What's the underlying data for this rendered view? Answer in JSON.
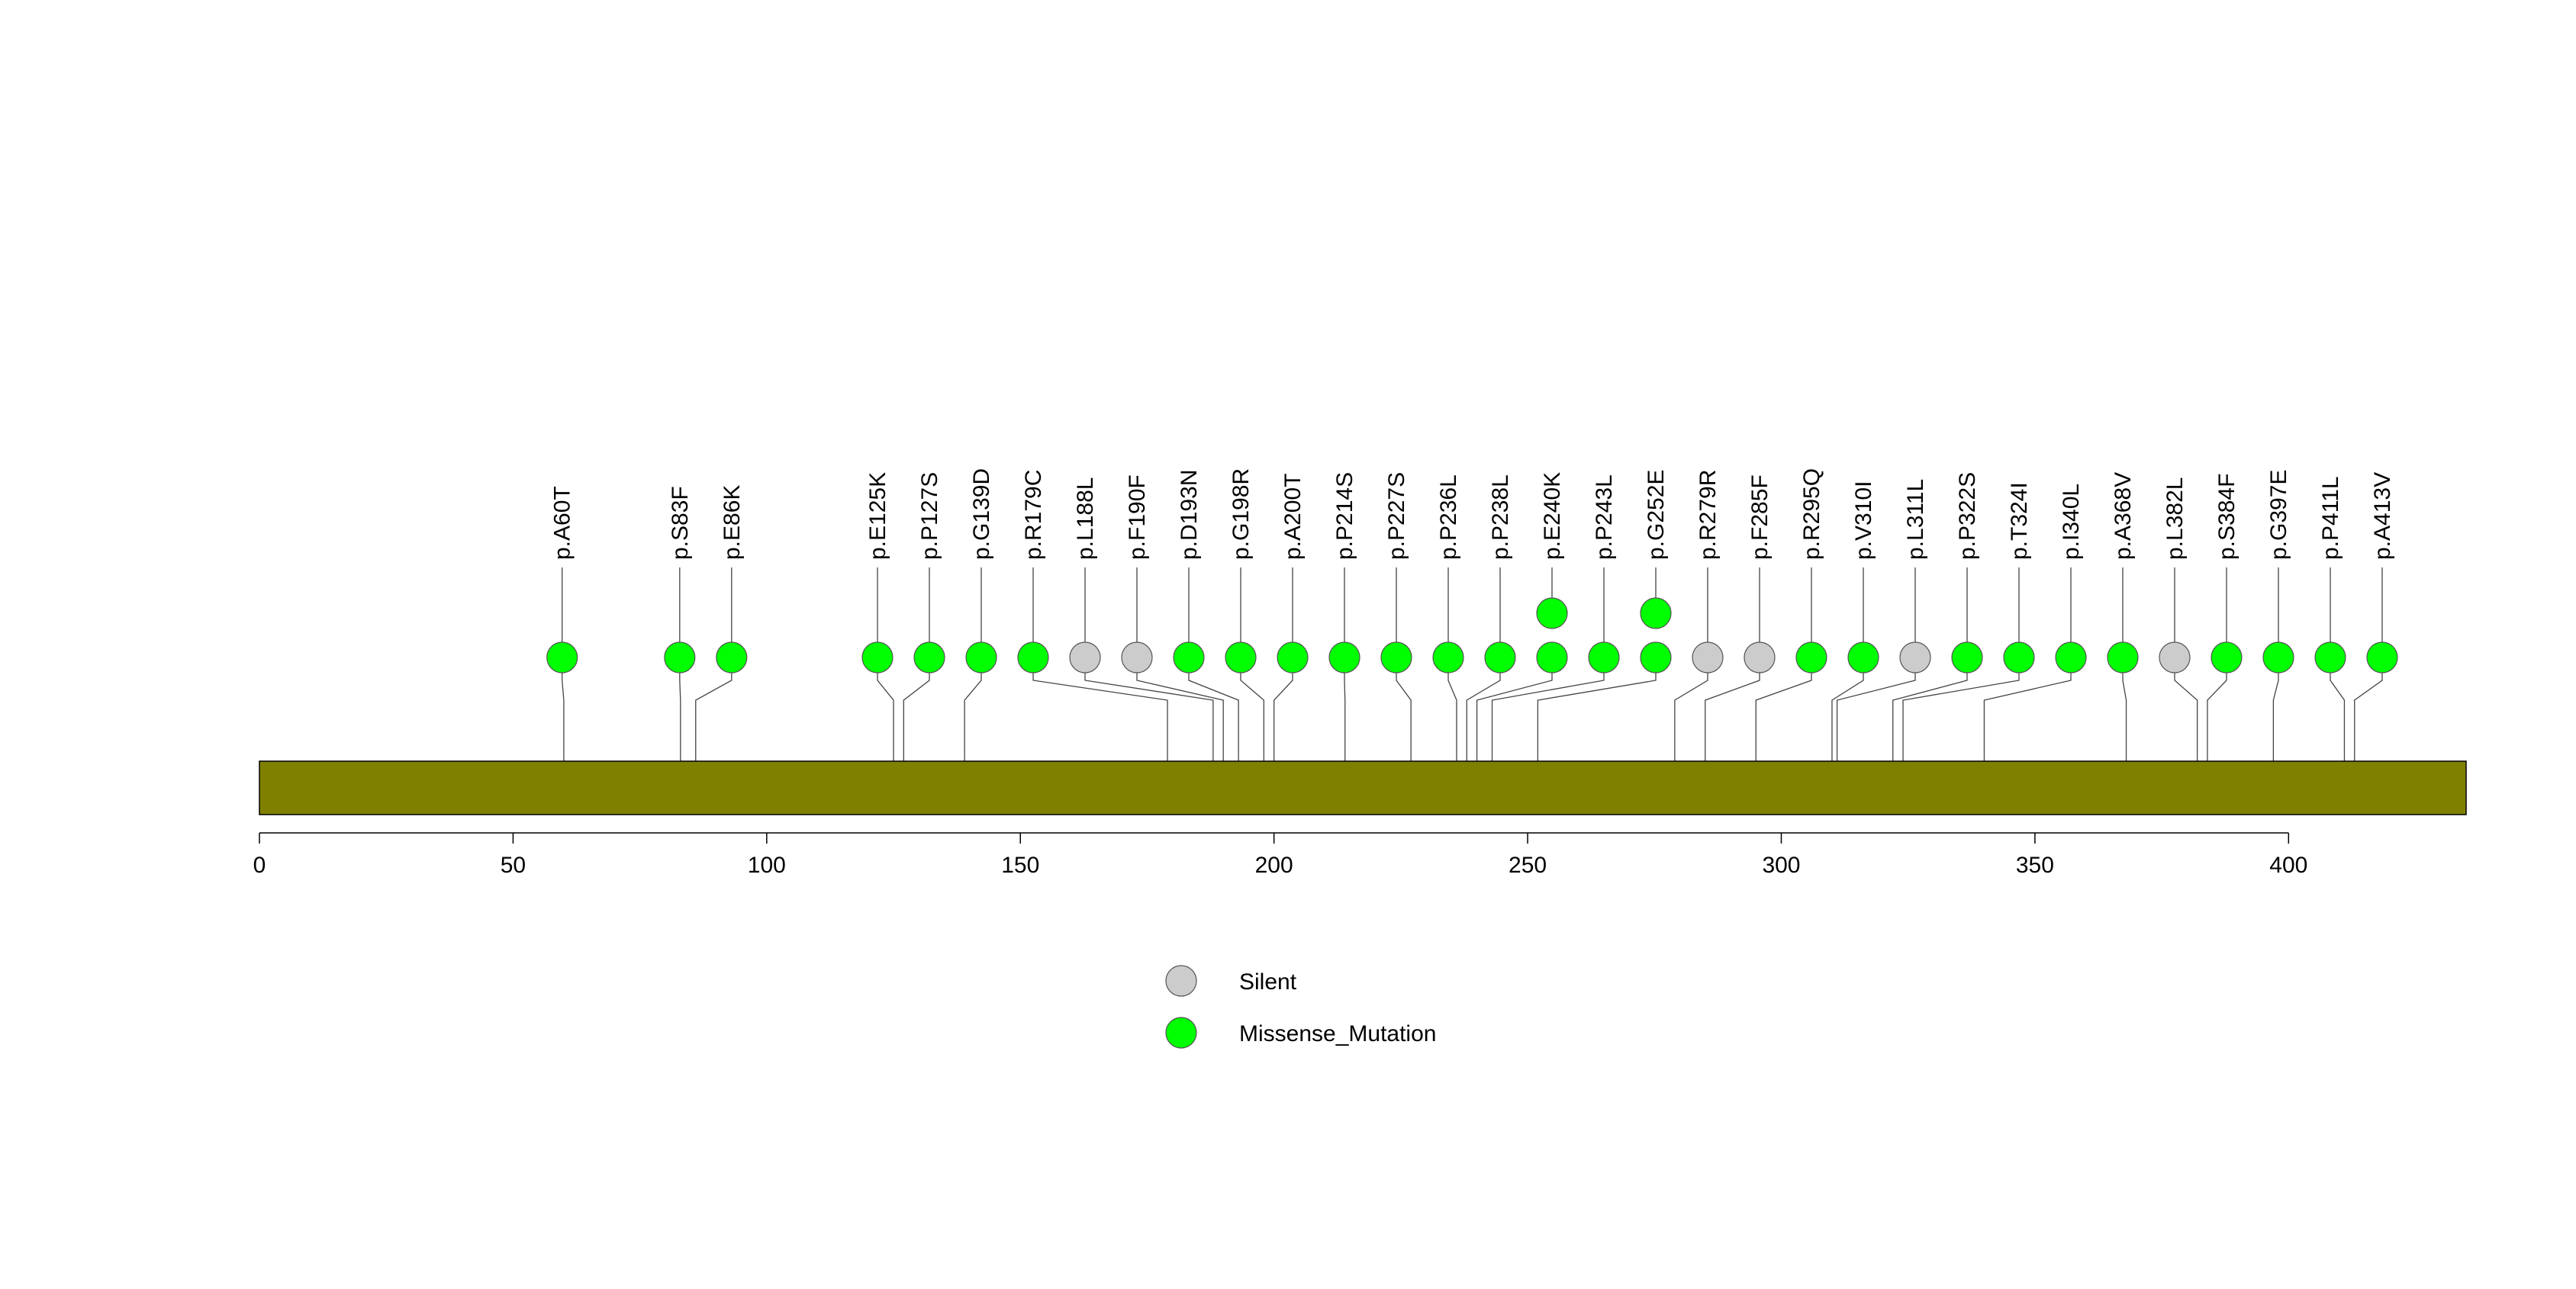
{
  "chart_data": {
    "type": "lollipop",
    "title": "",
    "xlabel": "",
    "ylabel": "",
    "xlim": [
      0,
      435
    ],
    "x_ticks": [
      0,
      50,
      100,
      150,
      200,
      250,
      300,
      350,
      400
    ],
    "protein_length": 435,
    "domain_color": "#808000",
    "legend": [
      {
        "label": "Silent",
        "color": "#cccccc"
      },
      {
        "label": "Missense_Mutation",
        "color": "#00ff00"
      }
    ],
    "colors": {
      "Silent": "#cccccc",
      "Missense_Mutation": "#00ff00"
    },
    "mutations": [
      {
        "label": "p.A60T",
        "position": 60,
        "count": 1,
        "type": "Missense_Mutation"
      },
      {
        "label": "p.S83F",
        "position": 83,
        "count": 1,
        "type": "Missense_Mutation"
      },
      {
        "label": "p.E86K",
        "position": 86,
        "count": 1,
        "type": "Missense_Mutation"
      },
      {
        "label": "p.E125K",
        "position": 125,
        "count": 1,
        "type": "Missense_Mutation"
      },
      {
        "label": "p.P127S",
        "position": 127,
        "count": 1,
        "type": "Missense_Mutation"
      },
      {
        "label": "p.G139D",
        "position": 139,
        "count": 1,
        "type": "Missense_Mutation"
      },
      {
        "label": "p.R179C",
        "position": 179,
        "count": 1,
        "type": "Missense_Mutation"
      },
      {
        "label": "p.L188L",
        "position": 188,
        "count": 1,
        "type": "Silent"
      },
      {
        "label": "p.F190F",
        "position": 190,
        "count": 1,
        "type": "Silent"
      },
      {
        "label": "p.D193N",
        "position": 193,
        "count": 1,
        "type": "Missense_Mutation"
      },
      {
        "label": "p.G198R",
        "position": 198,
        "count": 1,
        "type": "Missense_Mutation"
      },
      {
        "label": "p.A200T",
        "position": 200,
        "count": 1,
        "type": "Missense_Mutation"
      },
      {
        "label": "p.P214S",
        "position": 214,
        "count": 1,
        "type": "Missense_Mutation"
      },
      {
        "label": "p.P227S",
        "position": 227,
        "count": 1,
        "type": "Missense_Mutation"
      },
      {
        "label": "p.P236L",
        "position": 236,
        "count": 1,
        "type": "Missense_Mutation"
      },
      {
        "label": "p.P238L",
        "position": 238,
        "count": 1,
        "type": "Missense_Mutation"
      },
      {
        "label": "p.E240K",
        "position": 240,
        "count": 2,
        "type": "Missense_Mutation"
      },
      {
        "label": "p.P243L",
        "position": 243,
        "count": 1,
        "type": "Missense_Mutation"
      },
      {
        "label": "p.G252E",
        "position": 252,
        "count": 2,
        "type": "Missense_Mutation"
      },
      {
        "label": "p.R279R",
        "position": 279,
        "count": 1,
        "type": "Silent"
      },
      {
        "label": "p.F285F",
        "position": 285,
        "count": 1,
        "type": "Silent"
      },
      {
        "label": "p.R295Q",
        "position": 295,
        "count": 1,
        "type": "Missense_Mutation"
      },
      {
        "label": "p.V310I",
        "position": 310,
        "count": 1,
        "type": "Missense_Mutation"
      },
      {
        "label": "p.L311L",
        "position": 311,
        "count": 1,
        "type": "Silent"
      },
      {
        "label": "p.P322S",
        "position": 322,
        "count": 1,
        "type": "Missense_Mutation"
      },
      {
        "label": "p.T324I",
        "position": 324,
        "count": 1,
        "type": "Missense_Mutation"
      },
      {
        "label": "p.I340L",
        "position": 340,
        "count": 1,
        "type": "Missense_Mutation"
      },
      {
        "label": "p.A368V",
        "position": 368,
        "count": 1,
        "type": "Missense_Mutation"
      },
      {
        "label": "p.L382L",
        "position": 382,
        "count": 1,
        "type": "Silent"
      },
      {
        "label": "p.S384F",
        "position": 384,
        "count": 1,
        "type": "Missense_Mutation"
      },
      {
        "label": "p.G397E",
        "position": 397,
        "count": 1,
        "type": "Missense_Mutation"
      },
      {
        "label": "p.P411L",
        "position": 411,
        "count": 1,
        "type": "Missense_Mutation"
      },
      {
        "label": "p.A413V",
        "position": 413,
        "count": 1,
        "type": "Missense_Mutation"
      }
    ]
  }
}
